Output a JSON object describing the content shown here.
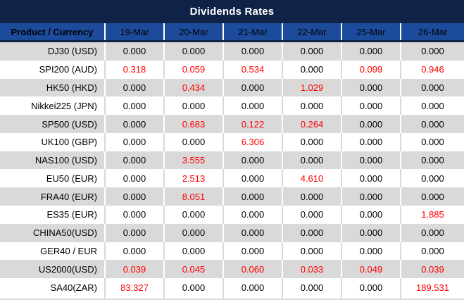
{
  "title": "Dividends Rates",
  "table": {
    "product_header": "Product / Currency",
    "date_headers": [
      "19-Mar",
      "20-Mar",
      "21-Mar",
      "22-Mar",
      "25-Mar",
      "26-Mar"
    ],
    "rows": [
      {
        "product": "DJ30 (USD)",
        "values": [
          "0.000",
          "0.000",
          "0.000",
          "0.000",
          "0.000",
          "0.000"
        ]
      },
      {
        "product": "SPI200 (AUD)",
        "values": [
          "0.318",
          "0.059",
          "0.534",
          "0.000",
          "0.099",
          "0.946"
        ]
      },
      {
        "product": "HK50 (HKD)",
        "values": [
          "0.000",
          "0.434",
          "0.000",
          "1.029",
          "0.000",
          "0.000"
        ]
      },
      {
        "product": "Nikkei225 (JPN)",
        "values": [
          "0.000",
          "0.000",
          "0.000",
          "0.000",
          "0.000",
          "0.000"
        ]
      },
      {
        "product": "SP500 (USD)",
        "values": [
          "0.000",
          "0.683",
          "0.122",
          "0.264",
          "0.000",
          "0.000"
        ]
      },
      {
        "product": "UK100 (GBP)",
        "values": [
          "0.000",
          "0.000",
          "6.306",
          "0.000",
          "0.000",
          "0.000"
        ]
      },
      {
        "product": "NAS100 (USD)",
        "values": [
          "0.000",
          "3.555",
          "0.000",
          "0.000",
          "0.000",
          "0.000"
        ]
      },
      {
        "product": "EU50 (EUR)",
        "values": [
          "0.000",
          "2.513",
          "0.000",
          "4.610",
          "0.000",
          "0.000"
        ]
      },
      {
        "product": "FRA40 (EUR)",
        "values": [
          "0.000",
          "8.051",
          "0.000",
          "0.000",
          "0.000",
          "0.000"
        ]
      },
      {
        "product": "ES35 (EUR)",
        "values": [
          "0.000",
          "0.000",
          "0.000",
          "0.000",
          "0.000",
          "1.885"
        ]
      },
      {
        "product": "CHINA50(USD)",
        "values": [
          "0.000",
          "0.000",
          "0.000",
          "0.000",
          "0.000",
          "0.000"
        ]
      },
      {
        "product": "GER40 / EUR",
        "values": [
          "0.000",
          "0.000",
          "0.000",
          "0.000",
          "0.000",
          "0.000"
        ]
      },
      {
        "product": "US2000(USD)",
        "values": [
          "0.039",
          "0.045",
          "0.060",
          "0.033",
          "0.049",
          "0.039"
        ]
      },
      {
        "product": "SA40(ZAR)",
        "values": [
          "83.327",
          "0.000",
          "0.000",
          "0.000",
          "0.000",
          "189.531"
        ]
      }
    ]
  },
  "chart_data": {
    "type": "table",
    "title": "Dividends Rates",
    "columns": [
      "Product / Currency",
      "19-Mar",
      "20-Mar",
      "21-Mar",
      "22-Mar",
      "25-Mar",
      "26-Mar"
    ],
    "rows": [
      [
        "DJ30 (USD)",
        "0.000",
        "0.000",
        "0.000",
        "0.000",
        "0.000",
        "0.000"
      ],
      [
        "SPI200 (AUD)",
        "0.318",
        "0.059",
        "0.534",
        "0.000",
        "0.099",
        "0.946"
      ],
      [
        "HK50 (HKD)",
        "0.000",
        "0.434",
        "0.000",
        "1.029",
        "0.000",
        "0.000"
      ],
      [
        "Nikkei225 (JPN)",
        "0.000",
        "0.000",
        "0.000",
        "0.000",
        "0.000",
        "0.000"
      ],
      [
        "SP500 (USD)",
        "0.000",
        "0.683",
        "0.122",
        "0.264",
        "0.000",
        "0.000"
      ],
      [
        "UK100 (GBP)",
        "0.000",
        "0.000",
        "6.306",
        "0.000",
        "0.000",
        "0.000"
      ],
      [
        "NAS100 (USD)",
        "0.000",
        "3.555",
        "0.000",
        "0.000",
        "0.000",
        "0.000"
      ],
      [
        "EU50 (EUR)",
        "0.000",
        "2.513",
        "0.000",
        "4.610",
        "0.000",
        "0.000"
      ],
      [
        "FRA40 (EUR)",
        "0.000",
        "8.051",
        "0.000",
        "0.000",
        "0.000",
        "0.000"
      ],
      [
        "ES35 (EUR)",
        "0.000",
        "0.000",
        "0.000",
        "0.000",
        "0.000",
        "1.885"
      ],
      [
        "CHINA50(USD)",
        "0.000",
        "0.000",
        "0.000",
        "0.000",
        "0.000",
        "0.000"
      ],
      [
        "GER40 / EUR",
        "0.000",
        "0.000",
        "0.000",
        "0.000",
        "0.000",
        "0.000"
      ],
      [
        "US2000(USD)",
        "0.039",
        "0.045",
        "0.060",
        "0.033",
        "0.049",
        "0.039"
      ],
      [
        "SA40(ZAR)",
        "83.327",
        "0.000",
        "0.000",
        "0.000",
        "0.000",
        "189.531"
      ]
    ]
  },
  "colors": {
    "title_bar": "#0f2247",
    "header_bg": "#1d4b9c",
    "row_gray": "#d9d9d9",
    "row_white": "#ffffff",
    "value_zero_text": "#000000",
    "value_nonzero_text": "#ff0000",
    "header_text": "#ffffff"
  }
}
